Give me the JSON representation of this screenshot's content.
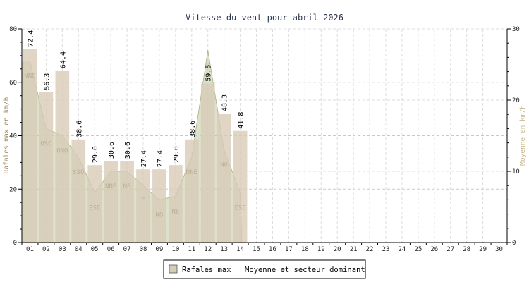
{
  "chart_data": {
    "type": "bar",
    "title": "Vitesse du vent pour abril 2026",
    "ylabel": "Rafales max en km/h",
    "y2label": "Moyenne en km/h",
    "ylim": [
      0,
      80
    ],
    "y2lim": [
      0,
      30
    ],
    "yticks": [
      0,
      20,
      40,
      60,
      80
    ],
    "y2ticks": [
      0,
      10,
      20,
      30
    ],
    "categories": [
      "01",
      "02",
      "03",
      "04",
      "05",
      "06",
      "07",
      "08",
      "09",
      "10",
      "11",
      "12",
      "13",
      "14",
      "15",
      "16",
      "17",
      "18",
      "19",
      "20",
      "21",
      "22",
      "23",
      "24",
      "25",
      "26",
      "27",
      "28",
      "29",
      "30"
    ],
    "series": [
      {
        "name": "Rafales max",
        "type": "bar",
        "color": "#d8cbb6",
        "values": [
          72.4,
          56.3,
          64.4,
          38.6,
          29.0,
          30.6,
          30.6,
          27.4,
          27.4,
          29.0,
          38.6,
          59.5,
          48.3,
          41.8,
          null,
          null,
          null,
          null,
          null,
          null,
          null,
          null,
          null,
          null,
          null,
          null,
          null,
          null,
          null,
          null
        ],
        "labels": [
          "72.4",
          "56.3",
          "64.4",
          "38.6",
          "29.0",
          "30.6",
          "30.6",
          "27.4",
          "27.4",
          "29.0",
          "38.6",
          "59.5",
          "48.3",
          "41.8"
        ]
      },
      {
        "name": "Moyenne et secteur dominant",
        "type": "area",
        "axis": "right",
        "color": "#bfc8a2",
        "values": [
          25.5,
          16.0,
          15.0,
          12.0,
          7.0,
          10.0,
          10.0,
          8.0,
          6.0,
          6.5,
          12.0,
          27.0,
          13.0,
          7.0,
          null,
          null,
          null,
          null,
          null,
          null,
          null,
          null,
          null,
          null,
          null,
          null,
          null,
          null,
          null,
          null
        ],
        "directions": [
          "NNO",
          "OSO",
          "ONO",
          "SSO",
          "SSE",
          "NNE",
          "NE",
          "E",
          "NO",
          "NE",
          "NNE",
          "O",
          "NO",
          "ESE"
        ]
      }
    ],
    "grid": true,
    "legend_position": "bottom"
  }
}
